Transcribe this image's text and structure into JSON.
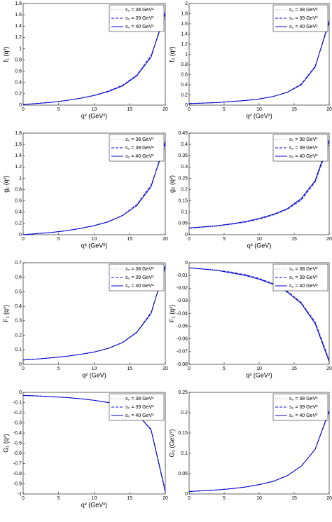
{
  "chart_data": [
    {
      "type": "line",
      "ylabel": "f₁ (q²)",
      "xlabel": "q² (GeV²)",
      "xlim": [
        0,
        20
      ],
      "xticks": [
        0,
        5,
        10,
        15,
        20
      ],
      "ylim": [
        0,
        1.8
      ],
      "yticks": [
        0,
        0.2,
        0.4,
        0.6,
        0.8,
        1,
        1.2,
        1.4,
        1.6,
        1.8
      ],
      "legend": "upper right",
      "x": [
        0,
        2,
        4,
        6,
        8,
        10,
        12,
        14,
        16,
        18,
        20
      ],
      "series": [
        {
          "name": "s₀ = 38 GeV²",
          "color": "#8080a0",
          "style": "dotted",
          "values": [
            0.01,
            0.03,
            0.05,
            0.08,
            0.12,
            0.18,
            0.25,
            0.36,
            0.55,
            0.9,
            1.55
          ]
        },
        {
          "name": "s₀ = 39 GeV²",
          "color": "#0000ff",
          "style": "dashed",
          "values": [
            0.01,
            0.03,
            0.05,
            0.08,
            0.12,
            0.17,
            0.25,
            0.35,
            0.53,
            0.87,
            1.6
          ]
        },
        {
          "name": "s₀ = 40 GeV²",
          "color": "#0000cc",
          "style": "solid",
          "values": [
            0.01,
            0.03,
            0.05,
            0.08,
            0.12,
            0.17,
            0.24,
            0.34,
            0.52,
            0.85,
            1.65
          ]
        }
      ]
    },
    {
      "type": "line",
      "ylabel": "f₂ (q²)",
      "xlabel": "q² (GeV²)",
      "xlim": [
        0,
        20
      ],
      "xticks": [
        0,
        5,
        10,
        15,
        20
      ],
      "ylim": [
        0,
        2
      ],
      "yticks": [
        0,
        0.2,
        0.4,
        0.6,
        0.8,
        1,
        1.2,
        1.4,
        1.6,
        1.8,
        2
      ],
      "legend": "upper right",
      "x": [
        0,
        2,
        4,
        6,
        8,
        10,
        12,
        14,
        16,
        18,
        20
      ],
      "series": [
        {
          "name": "s₀ = 38 GeV²",
          "color": "#8080a0",
          "style": "dotted",
          "values": [
            0.03,
            0.04,
            0.05,
            0.07,
            0.09,
            0.12,
            0.17,
            0.26,
            0.42,
            0.78,
            1.6
          ]
        },
        {
          "name": "s₀ = 39 GeV²",
          "color": "#0000ff",
          "style": "dashed",
          "values": [
            0.03,
            0.04,
            0.05,
            0.07,
            0.09,
            0.12,
            0.17,
            0.25,
            0.41,
            0.76,
            1.63
          ]
        },
        {
          "name": "s₀ = 40 GeV²",
          "color": "#0000cc",
          "style": "solid",
          "values": [
            0.03,
            0.04,
            0.05,
            0.07,
            0.09,
            0.12,
            0.17,
            0.25,
            0.4,
            0.75,
            1.66
          ]
        }
      ]
    },
    {
      "type": "line",
      "ylabel": "g₁ (q²)",
      "xlabel": "q² (GeV²)",
      "xlim": [
        0,
        20
      ],
      "xticks": [
        0,
        5,
        10,
        15,
        20
      ],
      "ylim": [
        0,
        1.8
      ],
      "yticks": [
        0,
        0.2,
        0.4,
        0.6,
        0.8,
        1,
        1.2,
        1.4,
        1.6,
        1.8
      ],
      "legend": "upper right",
      "x": [
        0,
        2,
        4,
        6,
        8,
        10,
        12,
        14,
        16,
        18,
        20
      ],
      "series": [
        {
          "name": "s₀ = 38 GeV²",
          "color": "#8080a0",
          "style": "dotted",
          "values": [
            0.0,
            0.02,
            0.04,
            0.07,
            0.11,
            0.17,
            0.24,
            0.35,
            0.55,
            0.9,
            1.55
          ]
        },
        {
          "name": "s₀ = 39 GeV²",
          "color": "#0000ff",
          "style": "dashed",
          "values": [
            0.0,
            0.02,
            0.04,
            0.07,
            0.11,
            0.16,
            0.23,
            0.34,
            0.53,
            0.87,
            1.6
          ]
        },
        {
          "name": "s₀ = 40 GeV²",
          "color": "#0000cc",
          "style": "solid",
          "values": [
            0.0,
            0.02,
            0.04,
            0.07,
            0.11,
            0.16,
            0.23,
            0.34,
            0.52,
            0.85,
            1.65
          ]
        }
      ]
    },
    {
      "type": "line",
      "ylabel": "g₂ (q²)",
      "xlabel": "q² (GeV)",
      "xlim": [
        0,
        20
      ],
      "xticks": [
        0,
        5,
        10,
        15,
        20
      ],
      "ylim": [
        0,
        0.45
      ],
      "yticks": [
        0,
        0.05,
        0.1,
        0.15,
        0.2,
        0.25,
        0.3,
        0.35,
        0.4,
        0.45
      ],
      "legend": "upper right",
      "x": [
        0,
        2,
        4,
        6,
        8,
        10,
        12,
        14,
        16,
        18,
        20
      ],
      "series": [
        {
          "name": "s₀ = 38 GeV²",
          "color": "#8080a0",
          "style": "dotted",
          "values": [
            0.028,
            0.032,
            0.037,
            0.045,
            0.054,
            0.067,
            0.085,
            0.11,
            0.15,
            0.23,
            0.4
          ]
        },
        {
          "name": "s₀ = 39 GeV²",
          "color": "#0000ff",
          "style": "dashed",
          "values": [
            0.029,
            0.034,
            0.039,
            0.047,
            0.056,
            0.07,
            0.088,
            0.113,
            0.155,
            0.235,
            0.41
          ]
        },
        {
          "name": "s₀ = 40 GeV²",
          "color": "#0000cc",
          "style": "solid",
          "values": [
            0.03,
            0.035,
            0.04,
            0.048,
            0.058,
            0.072,
            0.09,
            0.115,
            0.16,
            0.24,
            0.42
          ]
        }
      ]
    },
    {
      "type": "line",
      "ylabel": "F₁ (q²)",
      "xlabel": "q² (GeV)",
      "xlim": [
        0,
        20
      ],
      "xticks": [
        0,
        5,
        10,
        15,
        20
      ],
      "ylim": [
        0,
        0.7
      ],
      "yticks": [
        0,
        0.1,
        0.2,
        0.3,
        0.4,
        0.5,
        0.6,
        0.7
      ],
      "legend": "upper right",
      "x": [
        0,
        2,
        4,
        6,
        8,
        10,
        12,
        14,
        16,
        18,
        20
      ],
      "series": [
        {
          "name": "s₀ = 38 GeV²",
          "color": "#8080a0",
          "style": "dotted",
          "values": [
            0.03,
            0.037,
            0.045,
            0.055,
            0.068,
            0.086,
            0.112,
            0.153,
            0.225,
            0.36,
            0.66
          ]
        },
        {
          "name": "s₀ = 39 GeV²",
          "color": "#0000ff",
          "style": "dashed",
          "values": [
            0.03,
            0.037,
            0.045,
            0.055,
            0.068,
            0.085,
            0.11,
            0.151,
            0.222,
            0.355,
            0.67
          ]
        },
        {
          "name": "s₀ = 40 GeV²",
          "color": "#0000cc",
          "style": "solid",
          "values": [
            0.03,
            0.037,
            0.045,
            0.055,
            0.068,
            0.085,
            0.11,
            0.15,
            0.22,
            0.35,
            0.68
          ]
        }
      ]
    },
    {
      "type": "line",
      "ylabel": "F₂ (q²)",
      "xlabel": "q² (GeV²)",
      "xlim": [
        0,
        20
      ],
      "xticks": [
        0,
        5,
        10,
        15,
        20
      ],
      "ylim": [
        -0.08,
        0
      ],
      "yticks": [
        -0.08,
        -0.07,
        -0.06,
        -0.05,
        -0.04,
        -0.03,
        -0.02,
        -0.01,
        0
      ],
      "legend": "upper right",
      "x": [
        0,
        2,
        4,
        6,
        8,
        10,
        12,
        14,
        16,
        18,
        20
      ],
      "series": [
        {
          "name": "s₀ = 38 GeV²",
          "color": "#8080a0",
          "style": "dotted",
          "values": [
            -0.004,
            -0.0045,
            -0.0055,
            -0.007,
            -0.009,
            -0.012,
            -0.016,
            -0.022,
            -0.031,
            -0.046,
            -0.076
          ]
        },
        {
          "name": "s₀ = 39 GeV²",
          "color": "#0000ff",
          "style": "dashed",
          "values": [
            -0.004,
            -0.005,
            -0.006,
            -0.0075,
            -0.0095,
            -0.0125,
            -0.0165,
            -0.0225,
            -0.0315,
            -0.047,
            -0.077
          ]
        },
        {
          "name": "s₀ = 40 GeV²",
          "color": "#0000cc",
          "style": "solid",
          "values": [
            -0.004,
            -0.005,
            -0.006,
            -0.008,
            -0.01,
            -0.013,
            -0.017,
            -0.023,
            -0.032,
            -0.048,
            -0.078
          ]
        }
      ]
    },
    {
      "type": "line",
      "ylabel": "G₁ (q²)",
      "xlabel": "q² (GeV²)",
      "xlim": [
        0,
        20
      ],
      "xticks": [
        0,
        5,
        10,
        15,
        20
      ],
      "ylim": [
        -1,
        0
      ],
      "yticks": [
        -1,
        -0.9,
        -0.8,
        -0.7,
        -0.6,
        -0.5,
        -0.4,
        -0.3,
        -0.2,
        -0.1,
        0
      ],
      "legend": "upper right",
      "x": [
        0,
        2,
        4,
        6,
        8,
        10,
        12,
        14,
        16,
        18,
        20
      ],
      "series": [
        {
          "name": "s₀ = 38 GeV²",
          "color": "#8080a0",
          "style": "dotted",
          "values": [
            -0.03,
            -0.035,
            -0.042,
            -0.05,
            -0.062,
            -0.078,
            -0.1,
            -0.14,
            -0.21,
            -0.36,
            -0.96
          ]
        },
        {
          "name": "s₀ = 39 GeV²",
          "color": "#0000ff",
          "style": "dashed",
          "values": [
            -0.03,
            -0.035,
            -0.042,
            -0.05,
            -0.062,
            -0.078,
            -0.1,
            -0.14,
            -0.21,
            -0.365,
            -0.97
          ]
        },
        {
          "name": "s₀ = 40 GeV²",
          "color": "#0000cc",
          "style": "solid",
          "values": [
            -0.03,
            -0.035,
            -0.042,
            -0.05,
            -0.062,
            -0.078,
            -0.1,
            -0.14,
            -0.21,
            -0.37,
            -0.98
          ]
        }
      ]
    },
    {
      "type": "line",
      "ylabel": "G₂ (GeV²)",
      "xlim": [
        0,
        20
      ],
      "xticks": [
        0,
        5,
        10,
        15,
        20
      ],
      "ylim": [
        0,
        0.25
      ],
      "yticks": [
        0,
        0.05,
        0.1,
        0.15,
        0.2,
        0.25
      ],
      "legend": "upper right",
      "x": [
        0,
        2,
        4,
        6,
        8,
        10,
        12,
        14,
        16,
        18,
        20
      ],
      "series": [
        {
          "name": "s₀ = 38 GeV²",
          "color": "#8080a0",
          "style": "dotted",
          "values": [
            0.006,
            0.008,
            0.01,
            0.013,
            0.017,
            0.023,
            0.031,
            0.045,
            0.068,
            0.11,
            0.2
          ]
        },
        {
          "name": "s₀ = 39 GeV²",
          "color": "#0000ff",
          "style": "dashed",
          "values": [
            0.006,
            0.008,
            0.01,
            0.013,
            0.017,
            0.023,
            0.031,
            0.045,
            0.068,
            0.11,
            0.203
          ]
        },
        {
          "name": "s₀ = 40 GeV²",
          "color": "#0000cc",
          "style": "solid",
          "values": [
            0.006,
            0.008,
            0.01,
            0.013,
            0.017,
            0.023,
            0.031,
            0.045,
            0.068,
            0.11,
            0.205
          ]
        }
      ]
    }
  ]
}
